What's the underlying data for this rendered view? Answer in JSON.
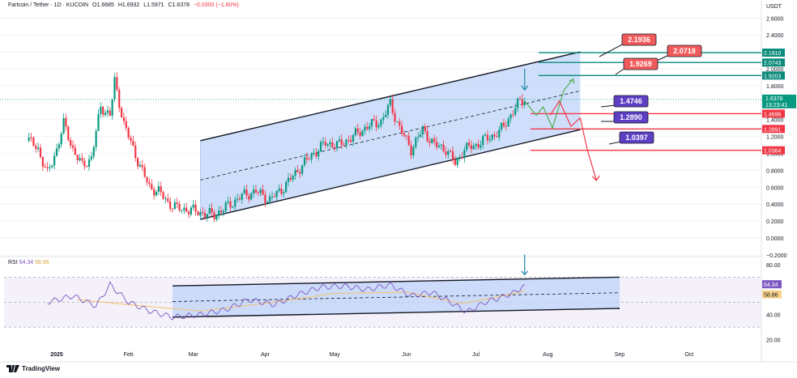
{
  "header": {
    "symbol": "Fartcoin / Tether · 1D · KUCOIN",
    "open": "O1.6685",
    "high": "H1.6932",
    "low": "L1.5971",
    "close": "C1.6378",
    "change": "−0.0300 (−1.80%)"
  },
  "currency": "USDT",
  "brand": "TradingView",
  "colors": {
    "up": "#089981",
    "down": "#f23645",
    "channel_fill": "#bbd1fa",
    "rsi_line": "#7e57c2",
    "rsi_ma": "#f5c26b",
    "teal_level": "#0a8a7a",
    "red_level": "#f23645",
    "purple_label": "#5d3fc4"
  },
  "chart_data": [
    {
      "type": "candlestick",
      "title": "",
      "xlabel": "",
      "ylabel": "USDT",
      "ylim": [
        -0.2,
        2.7
      ],
      "y_ticks": [
        "2.6000",
        "2.4000",
        "2.2000",
        "2.0000",
        "1.8000",
        "1.6000",
        "1.4000",
        "1.2000",
        "1.0000",
        "0.8000",
        "0.6000",
        "0.4000",
        "0.2000",
        "0.0000",
        "−0.2000"
      ],
      "x_ticks": [
        "2025",
        "Feb",
        "Mar",
        "Apr",
        "May",
        "Jun",
        "Jul",
        "Aug",
        "Sep",
        "Oct"
      ],
      "series_points": [
        [
          "2024-12-20",
          1.15
        ],
        [
          "2024-12-24",
          1.05
        ],
        [
          "2024-12-28",
          0.75
        ],
        [
          "2025-01-01",
          1.05
        ],
        [
          "2025-01-04",
          1.35
        ],
        [
          "2025-01-08",
          1.05
        ],
        [
          "2025-01-12",
          0.85
        ],
        [
          "2025-01-16",
          0.95
        ],
        [
          "2025-01-20",
          1.55
        ],
        [
          "2025-01-24",
          1.45
        ],
        [
          "2025-01-26",
          1.85
        ],
        [
          "2025-01-30",
          1.35
        ],
        [
          "2025-02-03",
          1.05
        ],
        [
          "2025-02-06",
          0.85
        ],
        [
          "2025-02-10",
          0.6
        ],
        [
          "2025-02-14",
          0.55
        ],
        [
          "2025-02-18",
          0.42
        ],
        [
          "2025-02-22",
          0.35
        ],
        [
          "2025-02-28",
          0.33
        ],
        [
          "2025-03-04",
          0.3
        ],
        [
          "2025-03-10",
          0.27
        ],
        [
          "2025-03-16",
          0.38
        ],
        [
          "2025-03-22",
          0.5
        ],
        [
          "2025-03-28",
          0.55
        ],
        [
          "2025-04-03",
          0.45
        ],
        [
          "2025-04-09",
          0.6
        ],
        [
          "2025-04-15",
          0.8
        ],
        [
          "2025-04-21",
          0.98
        ],
        [
          "2025-04-27",
          1.12
        ],
        [
          "2025-05-03",
          1.1
        ],
        [
          "2025-05-09",
          1.2
        ],
        [
          "2025-05-15",
          1.32
        ],
        [
          "2025-05-21",
          1.38
        ],
        [
          "2025-05-25",
          1.58
        ],
        [
          "2025-05-29",
          1.3
        ],
        [
          "2025-06-03",
          1.05
        ],
        [
          "2025-06-08",
          1.28
        ],
        [
          "2025-06-13",
          1.1
        ],
        [
          "2025-06-18",
          1.05
        ],
        [
          "2025-06-22",
          0.88
        ],
        [
          "2025-06-26",
          1.05
        ],
        [
          "2025-07-01",
          1.1
        ],
        [
          "2025-07-06",
          1.18
        ],
        [
          "2025-07-11",
          1.25
        ],
        [
          "2025-07-16",
          1.45
        ],
        [
          "2025-07-20",
          1.62
        ],
        [
          "2025-07-22",
          1.64
        ]
      ],
      "last_price": "1.6378",
      "countdown": "13:23:41",
      "levels": [
        {
          "value": 2.191,
          "label": "2.1910",
          "kind": "resistance"
        },
        {
          "value": 2.0743,
          "label": "2.0743",
          "kind": "resistance"
        },
        {
          "value": 1.9203,
          "label": "1.9203",
          "kind": "resistance"
        },
        {
          "value": 1.4696,
          "label": "1.4696",
          "kind": "support"
        },
        {
          "value": 1.2891,
          "label": "1.2891",
          "kind": "support"
        },
        {
          "value": 1.0364,
          "label": "1.0364",
          "kind": "support"
        }
      ],
      "callouts": [
        {
          "text": "2.1936",
          "style": "red"
        },
        {
          "text": "2.0718",
          "style": "red"
        },
        {
          "text": "1.9269",
          "style": "red"
        },
        {
          "text": "1.4746",
          "style": "purple"
        },
        {
          "text": "1.2890",
          "style": "purple"
        },
        {
          "text": "1.0397",
          "style": "purple"
        }
      ],
      "channel": {
        "start": "2025-03-04",
        "end": "2025-08-15",
        "lower_start": 0.22,
        "lower_end": 1.28,
        "upper_start": 1.15,
        "upper_end": 2.2
      },
      "projection_up": [
        [
          "2025-07-22",
          1.62
        ],
        [
          "2025-07-27",
          1.45
        ],
        [
          "2025-07-30",
          1.55
        ],
        [
          "2025-08-03",
          1.3
        ],
        [
          "2025-08-08",
          1.75
        ],
        [
          "2025-08-12",
          1.88
        ]
      ],
      "projection_down": [
        [
          "2025-08-02",
          1.45
        ],
        [
          "2025-08-06",
          1.62
        ],
        [
          "2025-08-11",
          1.32
        ],
        [
          "2025-08-15",
          1.42
        ],
        [
          "2025-08-18",
          1.05
        ],
        [
          "2025-08-22",
          0.68
        ]
      ]
    },
    {
      "type": "line",
      "title": "RSI",
      "ylim": [
        10,
        90
      ],
      "y_ticks": [
        "80.00",
        "40.00",
        "20.00"
      ],
      "series": [
        {
          "name": "RSI",
          "value_label": "64.34",
          "points": [
            [
              "2024-12-28",
              50
            ],
            [
              "2025-01-08",
              55
            ],
            [
              "2025-01-18",
              47
            ],
            [
              "2025-01-24",
              64
            ],
            [
              "2025-02-01",
              50
            ],
            [
              "2025-02-10",
              43
            ],
            [
              "2025-02-20",
              38
            ],
            [
              "2025-03-04",
              40
            ],
            [
              "2025-03-15",
              44
            ],
            [
              "2025-03-25",
              52
            ],
            [
              "2025-04-05",
              48
            ],
            [
              "2025-04-15",
              56
            ],
            [
              "2025-04-25",
              62
            ],
            [
              "2025-05-05",
              63
            ],
            [
              "2025-05-15",
              60
            ],
            [
              "2025-05-25",
              64
            ],
            [
              "2025-06-03",
              55
            ],
            [
              "2025-06-12",
              58
            ],
            [
              "2025-06-20",
              50
            ],
            [
              "2025-06-27",
              42
            ],
            [
              "2025-07-05",
              50
            ],
            [
              "2025-07-12",
              54
            ],
            [
              "2025-07-18",
              58
            ],
            [
              "2025-07-22",
              64
            ]
          ]
        },
        {
          "name": "MA",
          "value_label": "58.86",
          "points": [
            [
              "2025-01-10",
              52
            ],
            [
              "2025-02-01",
              48
            ],
            [
              "2025-03-04",
              43
            ],
            [
              "2025-04-01",
              49
            ],
            [
              "2025-05-01",
              57
            ],
            [
              "2025-06-01",
              58
            ],
            [
              "2025-06-25",
              49
            ],
            [
              "2025-07-10",
              54
            ],
            [
              "2025-07-22",
              59
            ]
          ]
        }
      ],
      "channel": {
        "start": "2025-02-20",
        "end": "2025-09-01",
        "lower_start": 38,
        "lower_end": 45,
        "upper_start": 63,
        "upper_end": 70
      }
    }
  ]
}
